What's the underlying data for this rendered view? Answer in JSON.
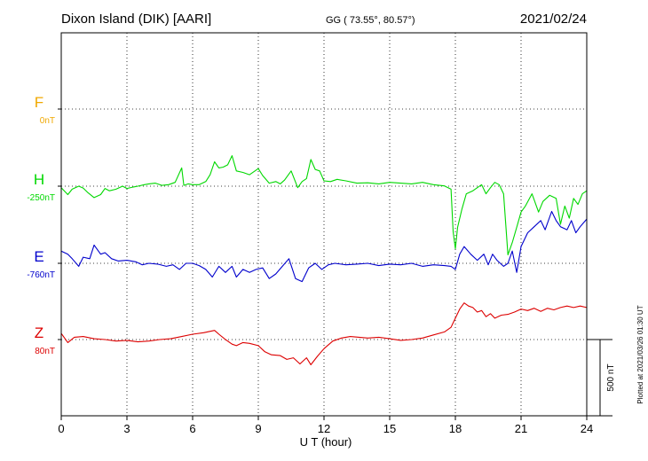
{
  "header": {
    "station": "Dixon Island (DIK)  [AARI]",
    "coords": "GG ( 73.55°,  80.57°)",
    "date": "2021/02/24"
  },
  "footer": {
    "plotted": "Plotted at 2021/03/26 01:30 UT"
  },
  "chart_data": {
    "type": "line",
    "xlabel": "U T (hour)",
    "x_ticks": [
      "0",
      "3",
      "6",
      "9",
      "12",
      "15",
      "18",
      "21",
      "24"
    ],
    "xlim": [
      0,
      24
    ],
    "scale_bar_label": "500 nT",
    "scale_bar_nT": 500,
    "colors": {
      "F": "#f0a800",
      "H": "#00d800",
      "E": "#0000cc",
      "Z": "#dd0000",
      "grid": "#000000",
      "text": "#000000"
    },
    "channels": [
      {
        "name": "F",
        "baseline": "0nT",
        "points": []
      },
      {
        "name": "H",
        "baseline": "-250nT",
        "points": [
          [
            0,
            -260
          ],
          [
            0.3,
            -305
          ],
          [
            0.5,
            -270
          ],
          [
            0.8,
            -250
          ],
          [
            1.0,
            -262
          ],
          [
            1.2,
            -290
          ],
          [
            1.5,
            -325
          ],
          [
            1.8,
            -305
          ],
          [
            2.0,
            -265
          ],
          [
            2.2,
            -280
          ],
          [
            2.5,
            -270
          ],
          [
            2.8,
            -250
          ],
          [
            3.0,
            -265
          ],
          [
            3.3,
            -255
          ],
          [
            3.5,
            -250
          ],
          [
            3.8,
            -240
          ],
          [
            4.0,
            -235
          ],
          [
            4.3,
            -230
          ],
          [
            4.6,
            -245
          ],
          [
            4.9,
            -240
          ],
          [
            5.2,
            -225
          ],
          [
            5.5,
            -130
          ],
          [
            5.6,
            -245
          ],
          [
            5.8,
            -235
          ],
          [
            6.0,
            -240
          ],
          [
            6.3,
            -240
          ],
          [
            6.6,
            -220
          ],
          [
            6.8,
            -175
          ],
          [
            7.0,
            -90
          ],
          [
            7.2,
            -130
          ],
          [
            7.4,
            -125
          ],
          [
            7.6,
            -110
          ],
          [
            7.8,
            -50
          ],
          [
            8.0,
            -150
          ],
          [
            8.3,
            -160
          ],
          [
            8.6,
            -175
          ],
          [
            9.0,
            -135
          ],
          [
            9.2,
            -180
          ],
          [
            9.5,
            -230
          ],
          [
            9.8,
            -220
          ],
          [
            10.0,
            -235
          ],
          [
            10.2,
            -210
          ],
          [
            10.5,
            -150
          ],
          [
            10.8,
            -260
          ],
          [
            11.0,
            -220
          ],
          [
            11.2,
            -200
          ],
          [
            11.4,
            -75
          ],
          [
            11.6,
            -140
          ],
          [
            11.8,
            -150
          ],
          [
            12.0,
            -215
          ],
          [
            12.3,
            -220
          ],
          [
            12.6,
            -205
          ],
          [
            13.0,
            -215
          ],
          [
            13.5,
            -230
          ],
          [
            14.0,
            -228
          ],
          [
            14.5,
            -235
          ],
          [
            15.0,
            -225
          ],
          [
            15.5,
            -230
          ],
          [
            16.0,
            -235
          ],
          [
            16.5,
            -225
          ],
          [
            17.0,
            -240
          ],
          [
            17.5,
            -248
          ],
          [
            17.8,
            -270
          ],
          [
            17.9,
            -550
          ],
          [
            18.0,
            -660
          ],
          [
            18.1,
            -520
          ],
          [
            18.3,
            -400
          ],
          [
            18.5,
            -300
          ],
          [
            18.8,
            -280
          ],
          [
            19.0,
            -260
          ],
          [
            19.2,
            -240
          ],
          [
            19.4,
            -300
          ],
          [
            19.6,
            -260
          ],
          [
            19.8,
            -225
          ],
          [
            20.0,
            -240
          ],
          [
            20.2,
            -300
          ],
          [
            20.4,
            -700
          ],
          [
            20.6,
            -620
          ],
          [
            20.8,
            -520
          ],
          [
            21.0,
            -420
          ],
          [
            21.2,
            -380
          ],
          [
            21.5,
            -300
          ],
          [
            21.8,
            -420
          ],
          [
            22.0,
            -350
          ],
          [
            22.3,
            -310
          ],
          [
            22.6,
            -330
          ],
          [
            22.8,
            -500
          ],
          [
            23.0,
            -380
          ],
          [
            23.2,
            -460
          ],
          [
            23.4,
            -330
          ],
          [
            23.6,
            -370
          ],
          [
            23.8,
            -300
          ],
          [
            24.0,
            -280
          ]
        ]
      },
      {
        "name": "E",
        "baseline": "-760nT",
        "points": [
          [
            0,
            -680
          ],
          [
            0.3,
            -700
          ],
          [
            0.5,
            -730
          ],
          [
            0.8,
            -780
          ],
          [
            1.0,
            -720
          ],
          [
            1.3,
            -730
          ],
          [
            1.5,
            -640
          ],
          [
            1.8,
            -700
          ],
          [
            2.0,
            -690
          ],
          [
            2.3,
            -730
          ],
          [
            2.6,
            -745
          ],
          [
            3.0,
            -740
          ],
          [
            3.4,
            -750
          ],
          [
            3.7,
            -770
          ],
          [
            4.0,
            -760
          ],
          [
            4.4,
            -765
          ],
          [
            4.8,
            -780
          ],
          [
            5.1,
            -770
          ],
          [
            5.4,
            -800
          ],
          [
            5.7,
            -760
          ],
          [
            6.0,
            -760
          ],
          [
            6.3,
            -775
          ],
          [
            6.6,
            -800
          ],
          [
            6.9,
            -850
          ],
          [
            7.2,
            -780
          ],
          [
            7.5,
            -820
          ],
          [
            7.8,
            -780
          ],
          [
            8.0,
            -850
          ],
          [
            8.3,
            -800
          ],
          [
            8.6,
            -820
          ],
          [
            8.9,
            -800
          ],
          [
            9.2,
            -790
          ],
          [
            9.5,
            -860
          ],
          [
            9.8,
            -830
          ],
          [
            10.1,
            -780
          ],
          [
            10.4,
            -730
          ],
          [
            10.7,
            -860
          ],
          [
            11.0,
            -880
          ],
          [
            11.3,
            -790
          ],
          [
            11.6,
            -760
          ],
          [
            11.9,
            -800
          ],
          [
            12.2,
            -770
          ],
          [
            12.5,
            -760
          ],
          [
            13.0,
            -770
          ],
          [
            13.5,
            -765
          ],
          [
            14.0,
            -760
          ],
          [
            14.5,
            -775
          ],
          [
            15.0,
            -765
          ],
          [
            15.5,
            -770
          ],
          [
            16.0,
            -760
          ],
          [
            16.5,
            -780
          ],
          [
            17.0,
            -770
          ],
          [
            17.5,
            -775
          ],
          [
            17.8,
            -780
          ],
          [
            18.0,
            -800
          ],
          [
            18.2,
            -700
          ],
          [
            18.4,
            -650
          ],
          [
            18.7,
            -700
          ],
          [
            19.0,
            -740
          ],
          [
            19.3,
            -700
          ],
          [
            19.5,
            -770
          ],
          [
            19.7,
            -700
          ],
          [
            19.9,
            -740
          ],
          [
            20.2,
            -780
          ],
          [
            20.4,
            -760
          ],
          [
            20.6,
            -680
          ],
          [
            20.8,
            -820
          ],
          [
            21.0,
            -650
          ],
          [
            21.3,
            -560
          ],
          [
            21.6,
            -520
          ],
          [
            21.9,
            -480
          ],
          [
            22.1,
            -540
          ],
          [
            22.4,
            -420
          ],
          [
            22.6,
            -480
          ],
          [
            22.8,
            -520
          ],
          [
            23.1,
            -540
          ],
          [
            23.3,
            -480
          ],
          [
            23.5,
            -560
          ],
          [
            23.7,
            -520
          ],
          [
            24.0,
            -470
          ]
        ]
      },
      {
        "name": "Z",
        "baseline": "80nT",
        "points": [
          [
            0,
            120
          ],
          [
            0.3,
            60
          ],
          [
            0.6,
            95
          ],
          [
            1.0,
            100
          ],
          [
            1.5,
            85
          ],
          [
            2.0,
            80
          ],
          [
            2.5,
            70
          ],
          [
            3.0,
            75
          ],
          [
            3.5,
            65
          ],
          [
            4.0,
            70
          ],
          [
            4.5,
            80
          ],
          [
            5.0,
            85
          ],
          [
            5.5,
            100
          ],
          [
            6.0,
            115
          ],
          [
            6.5,
            125
          ],
          [
            7.0,
            140
          ],
          [
            7.2,
            115
          ],
          [
            7.5,
            80
          ],
          [
            7.8,
            50
          ],
          [
            8.0,
            40
          ],
          [
            8.3,
            60
          ],
          [
            8.6,
            55
          ],
          [
            9.0,
            40
          ],
          [
            9.3,
            0
          ],
          [
            9.6,
            -20
          ],
          [
            10.0,
            -25
          ],
          [
            10.3,
            -50
          ],
          [
            10.6,
            -40
          ],
          [
            10.9,
            -80
          ],
          [
            11.2,
            -40
          ],
          [
            11.4,
            -85
          ],
          [
            11.7,
            -30
          ],
          [
            12.0,
            20
          ],
          [
            12.4,
            70
          ],
          [
            12.8,
            90
          ],
          [
            13.2,
            100
          ],
          [
            13.6,
            95
          ],
          [
            14.0,
            90
          ],
          [
            14.5,
            95
          ],
          [
            15.0,
            85
          ],
          [
            15.5,
            75
          ],
          [
            16.0,
            80
          ],
          [
            16.5,
            90
          ],
          [
            17.0,
            110
          ],
          [
            17.5,
            130
          ],
          [
            17.8,
            160
          ],
          [
            18.0,
            220
          ],
          [
            18.2,
            280
          ],
          [
            18.4,
            320
          ],
          [
            18.6,
            300
          ],
          [
            18.8,
            290
          ],
          [
            19.0,
            260
          ],
          [
            19.2,
            270
          ],
          [
            19.4,
            230
          ],
          [
            19.6,
            250
          ],
          [
            19.8,
            220
          ],
          [
            20.1,
            240
          ],
          [
            20.4,
            245
          ],
          [
            20.7,
            260
          ],
          [
            21.0,
            280
          ],
          [
            21.3,
            270
          ],
          [
            21.6,
            285
          ],
          [
            21.9,
            265
          ],
          [
            22.2,
            285
          ],
          [
            22.5,
            275
          ],
          [
            22.8,
            290
          ],
          [
            23.1,
            300
          ],
          [
            23.4,
            290
          ],
          [
            23.7,
            300
          ],
          [
            24.0,
            290
          ]
        ]
      }
    ]
  }
}
